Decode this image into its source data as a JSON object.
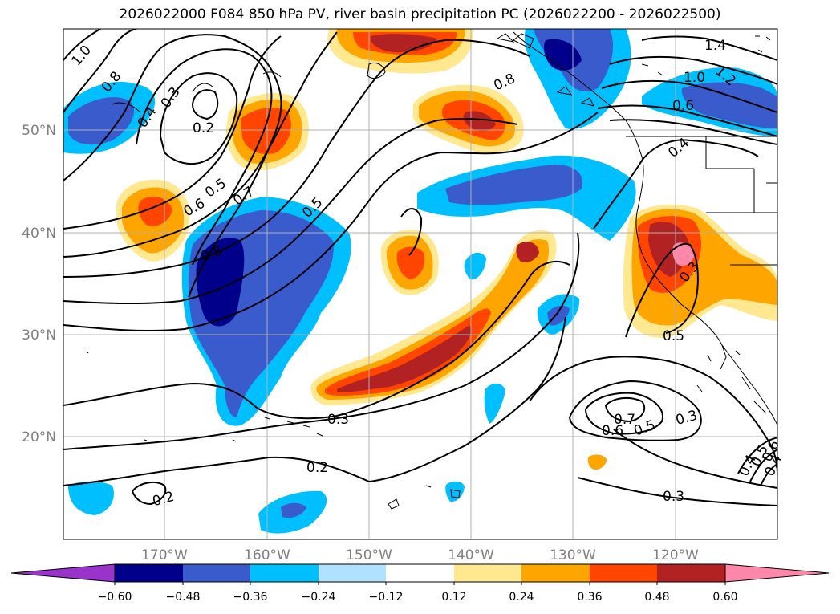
{
  "title": "2026022000 F084 850 hPa PV, river basin precipitation PC (2026022200 - 2026022500)",
  "colors": {
    "neg_060_below": "#9933cc",
    "neg_060_048": "#00008b",
    "neg_048_036": "#3a5bcc",
    "neg_036_024": "#00bfff",
    "neg_024_012": "#b0e2ff",
    "neutral": "#ffffff",
    "pos_012_024": "#ffe88f",
    "pos_024_036": "#ffa500",
    "pos_036_048": "#ff4500",
    "pos_048_060": "#b22222",
    "pos_060_above": "#ff88aa",
    "contour": "#000000",
    "coast": "#000000",
    "grid": "#b0b0b0"
  },
  "map": {
    "lon_labels": [
      "170°W",
      "160°W",
      "150°W",
      "140°W",
      "130°W",
      "120°W"
    ],
    "lat_labels": [
      "50°N",
      "40°N",
      "30°N",
      "20°N"
    ]
  },
  "colorbar": {
    "labels": [
      "−0.60",
      "−0.48",
      "−0.36",
      "−0.24",
      "−0.12",
      "0.12",
      "0.24",
      "0.36",
      "0.48",
      "0.60"
    ]
  },
  "contour_labels": [
    "1.0",
    "0.8",
    "0.3",
    "0.4",
    "0.2",
    "0.5",
    "0.7",
    "0.6",
    "0.5",
    "0.8",
    "1.4",
    "1.0",
    "1.2",
    "0.6",
    "0.4",
    "0.5",
    "0.3",
    "0.2",
    "0.2",
    "0.3",
    "0.7",
    "0.6",
    "0.5",
    "0.3",
    "0.3",
    "0.4",
    "0.5",
    "0.6",
    "0.4",
    "0.8"
  ]
}
